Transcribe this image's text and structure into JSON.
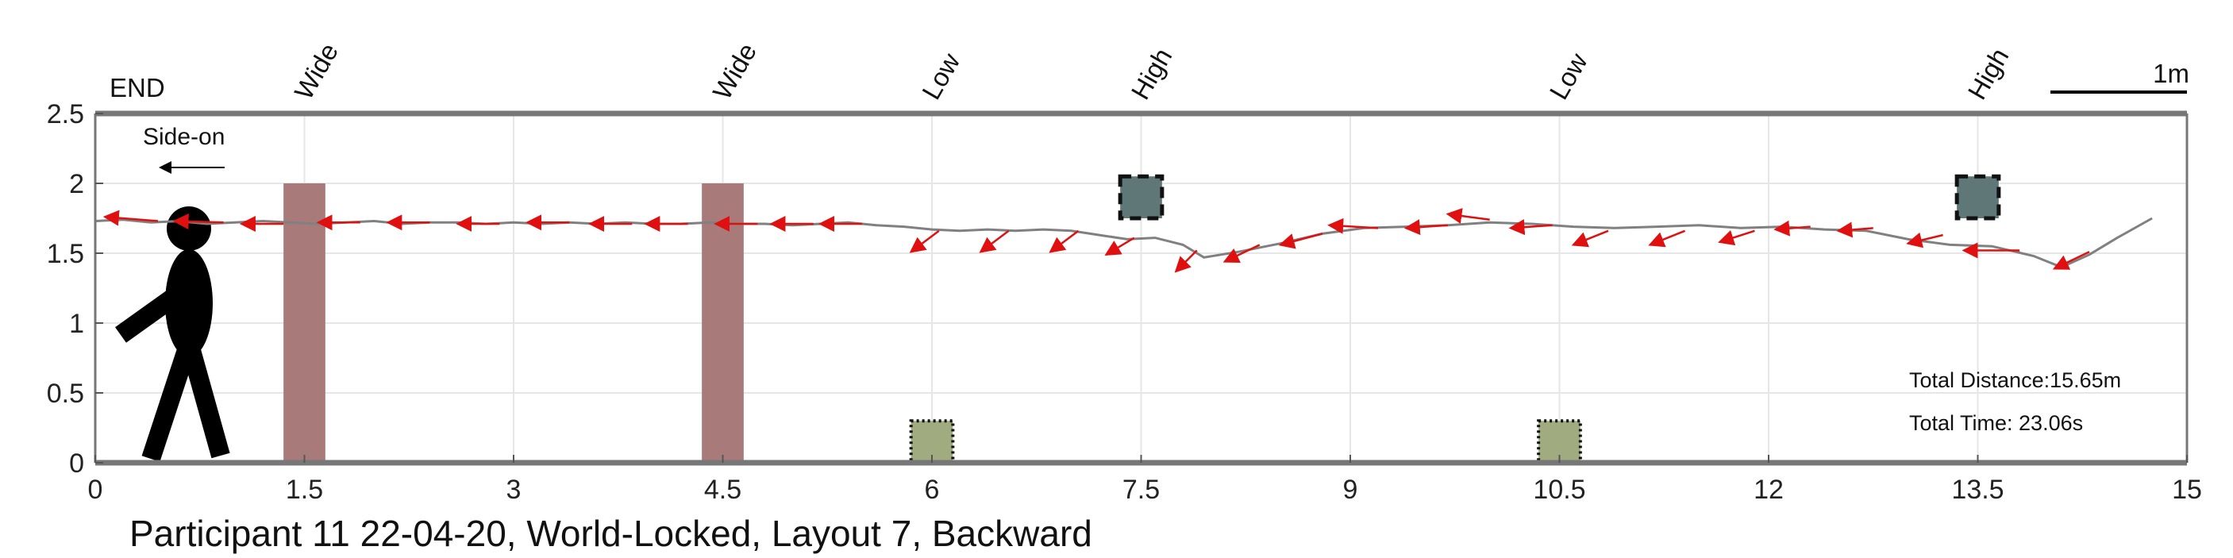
{
  "chart_data": {
    "type": "line",
    "title": "Participant 11 22-04-20, World-Locked, Layout 7, Backward",
    "xlabel": "",
    "ylabel": "",
    "xlim": [
      0,
      15
    ],
    "ylim": [
      0,
      2.5
    ],
    "x_ticks": [
      "0",
      "1.5",
      "3",
      "4.5",
      "6",
      "7.5",
      "9",
      "10.5",
      "12",
      "13.5",
      "15"
    ],
    "y_ticks": [
      "0",
      "0.5",
      "1",
      "1.5",
      "2",
      "2.5"
    ],
    "grid": true,
    "end_label": "END",
    "view_label": "Side-on",
    "scale_label": "1m",
    "scale_length_m": 1,
    "annotations": {
      "distance": "Total Distance:15.65m",
      "time": "Total Time: 23.06s"
    },
    "obstacles": [
      {
        "label": "Wide",
        "type": "wide",
        "x_range": [
          1.35,
          1.65
        ],
        "y_range": [
          0,
          2.0
        ],
        "color": "#a87a7a"
      },
      {
        "label": "Wide",
        "type": "wide",
        "x_range": [
          4.35,
          4.65
        ],
        "y_range": [
          0,
          2.0
        ],
        "color": "#a87a7a"
      },
      {
        "label": "Low",
        "type": "low",
        "x_range": [
          5.85,
          6.15
        ],
        "y_range": [
          0,
          0.3
        ],
        "color": "#a0ac80"
      },
      {
        "label": "High",
        "type": "high",
        "x_range": [
          7.35,
          7.65
        ],
        "y_range": [
          1.75,
          2.05
        ],
        "color": "#5f7777"
      },
      {
        "label": "Low",
        "type": "low",
        "x_range": [
          10.35,
          10.65
        ],
        "y_range": [
          0,
          0.3
        ],
        "color": "#a0ac80"
      },
      {
        "label": "High",
        "type": "high",
        "x_range": [
          13.35,
          13.65
        ],
        "y_range": [
          1.75,
          2.05
        ],
        "color": "#5f7777"
      }
    ],
    "series": [
      {
        "color": "#808080",
        "x": [
          0.0,
          0.2,
          0.4,
          0.6,
          0.8,
          1.0,
          1.2,
          1.4,
          1.6,
          1.8,
          2.0,
          2.2,
          2.4,
          2.6,
          2.8,
          3.0,
          3.2,
          3.4,
          3.6,
          3.8,
          4.0,
          4.2,
          4.4,
          4.6,
          4.8,
          5.0,
          5.2,
          5.4,
          5.6,
          5.8,
          6.0,
          6.2,
          6.4,
          6.6,
          6.8,
          7.0,
          7.2,
          7.4,
          7.6,
          7.8,
          7.95,
          8.2,
          8.5,
          8.8,
          9.1,
          9.4,
          9.7,
          10.0,
          10.3,
          10.6,
          10.9,
          11.2,
          11.5,
          11.8,
          12.1,
          12.4,
          12.7,
          13.0,
          13.3,
          13.6,
          13.9,
          14.1,
          14.3,
          14.5,
          14.75
        ],
        "y": [
          1.73,
          1.74,
          1.72,
          1.73,
          1.71,
          1.72,
          1.73,
          1.72,
          1.71,
          1.72,
          1.73,
          1.71,
          1.72,
          1.72,
          1.71,
          1.72,
          1.71,
          1.72,
          1.71,
          1.72,
          1.71,
          1.71,
          1.72,
          1.71,
          1.71,
          1.7,
          1.71,
          1.72,
          1.7,
          1.69,
          1.67,
          1.66,
          1.67,
          1.66,
          1.67,
          1.66,
          1.63,
          1.6,
          1.61,
          1.56,
          1.47,
          1.51,
          1.57,
          1.64,
          1.68,
          1.69,
          1.7,
          1.72,
          1.71,
          1.69,
          1.68,
          1.69,
          1.7,
          1.68,
          1.69,
          1.67,
          1.66,
          1.6,
          1.56,
          1.55,
          1.48,
          1.4,
          1.49,
          1.61,
          1.75
        ]
      }
    ],
    "orientation_arrows": [
      {
        "x": 0.45,
        "y": 1.73,
        "dx": -0.38,
        "dy": 0.03
      },
      {
        "x": 0.92,
        "y": 1.72,
        "dx": -0.35,
        "dy": 0.01
      },
      {
        "x": 1.35,
        "y": 1.71,
        "dx": -0.3,
        "dy": 0.0
      },
      {
        "x": 1.9,
        "y": 1.72,
        "dx": -0.3,
        "dy": 0.0
      },
      {
        "x": 2.4,
        "y": 1.72,
        "dx": -0.3,
        "dy": 0.0
      },
      {
        "x": 2.9,
        "y": 1.71,
        "dx": -0.3,
        "dy": 0.0
      },
      {
        "x": 3.4,
        "y": 1.72,
        "dx": -0.3,
        "dy": 0.0
      },
      {
        "x": 3.85,
        "y": 1.71,
        "dx": -0.3,
        "dy": 0.0
      },
      {
        "x": 4.25,
        "y": 1.71,
        "dx": -0.3,
        "dy": 0.0
      },
      {
        "x": 4.75,
        "y": 1.71,
        "dx": -0.3,
        "dy": 0.0
      },
      {
        "x": 5.15,
        "y": 1.71,
        "dx": -0.3,
        "dy": 0.0
      },
      {
        "x": 5.5,
        "y": 1.71,
        "dx": -0.3,
        "dy": 0.0
      },
      {
        "x": 6.05,
        "y": 1.66,
        "dx": -0.2,
        "dy": -0.15
      },
      {
        "x": 6.55,
        "y": 1.66,
        "dx": -0.2,
        "dy": -0.15
      },
      {
        "x": 7.05,
        "y": 1.66,
        "dx": -0.2,
        "dy": -0.15
      },
      {
        "x": 7.45,
        "y": 1.61,
        "dx": -0.2,
        "dy": -0.12
      },
      {
        "x": 7.9,
        "y": 1.52,
        "dx": -0.15,
        "dy": -0.15
      },
      {
        "x": 8.35,
        "y": 1.56,
        "dx": -0.25,
        "dy": -0.12
      },
      {
        "x": 8.8,
        "y": 1.64,
        "dx": -0.3,
        "dy": -0.08
      },
      {
        "x": 9.2,
        "y": 1.68,
        "dx": -0.35,
        "dy": 0.02
      },
      {
        "x": 9.7,
        "y": 1.7,
        "dx": -0.3,
        "dy": -0.02
      },
      {
        "x": 10.0,
        "y": 1.74,
        "dx": -0.3,
        "dy": 0.04
      },
      {
        "x": 10.45,
        "y": 1.7,
        "dx": -0.3,
        "dy": -0.02
      },
      {
        "x": 10.85,
        "y": 1.66,
        "dx": -0.25,
        "dy": -0.1
      },
      {
        "x": 11.4,
        "y": 1.66,
        "dx": -0.25,
        "dy": -0.1
      },
      {
        "x": 11.9,
        "y": 1.66,
        "dx": -0.25,
        "dy": -0.08
      },
      {
        "x": 12.3,
        "y": 1.69,
        "dx": -0.25,
        "dy": -0.02
      },
      {
        "x": 12.75,
        "y": 1.68,
        "dx": -0.25,
        "dy": -0.02
      },
      {
        "x": 13.25,
        "y": 1.63,
        "dx": -0.25,
        "dy": -0.06
      },
      {
        "x": 13.8,
        "y": 1.52,
        "dx": -0.4,
        "dy": 0.0
      },
      {
        "x": 14.3,
        "y": 1.51,
        "dx": -0.25,
        "dy": -0.12
      }
    ]
  }
}
